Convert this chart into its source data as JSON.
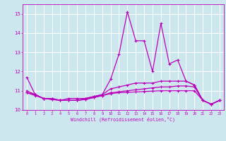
{
  "xlabel": "Windchill (Refroidissement éolien,°C)",
  "bg_color": "#cce8ee",
  "grid_color": "#ffffff",
  "line_color": "#bb00bb",
  "x": [
    0,
    1,
    2,
    3,
    4,
    5,
    6,
    7,
    8,
    9,
    10,
    11,
    12,
    13,
    14,
    15,
    16,
    17,
    18,
    19,
    20,
    21,
    22,
    23
  ],
  "line1": [
    11.7,
    10.8,
    10.6,
    10.6,
    10.5,
    10.6,
    10.6,
    10.6,
    10.7,
    10.8,
    11.6,
    12.9,
    15.1,
    13.6,
    13.6,
    12.0,
    14.5,
    12.4,
    12.6,
    11.5,
    11.3,
    10.5,
    10.3,
    10.5
  ],
  "line2": [
    11.0,
    10.8,
    10.6,
    10.6,
    10.5,
    10.5,
    10.5,
    10.6,
    10.7,
    10.8,
    11.1,
    11.2,
    11.3,
    11.4,
    11.4,
    11.4,
    11.5,
    11.5,
    11.5,
    11.5,
    11.3,
    10.5,
    10.3,
    10.5
  ],
  "line3": [
    10.9,
    10.8,
    10.6,
    10.55,
    10.5,
    10.5,
    10.5,
    10.55,
    10.65,
    10.75,
    10.85,
    10.9,
    10.92,
    10.94,
    10.96,
    10.98,
    11.0,
    11.0,
    11.0,
    11.0,
    11.0,
    10.5,
    10.3,
    10.5
  ],
  "line4": [
    10.9,
    10.75,
    10.6,
    10.55,
    10.5,
    10.5,
    10.5,
    10.55,
    10.65,
    10.75,
    10.9,
    10.95,
    11.0,
    11.05,
    11.1,
    11.15,
    11.2,
    11.2,
    11.25,
    11.25,
    11.2,
    10.5,
    10.3,
    10.5
  ],
  "ylim": [
    10.0,
    15.5
  ],
  "yticks": [
    10,
    11,
    12,
    13,
    14,
    15
  ],
  "xticks": [
    0,
    1,
    2,
    3,
    4,
    5,
    6,
    7,
    8,
    9,
    10,
    11,
    12,
    13,
    14,
    15,
    16,
    17,
    18,
    19,
    20,
    21,
    22,
    23
  ]
}
